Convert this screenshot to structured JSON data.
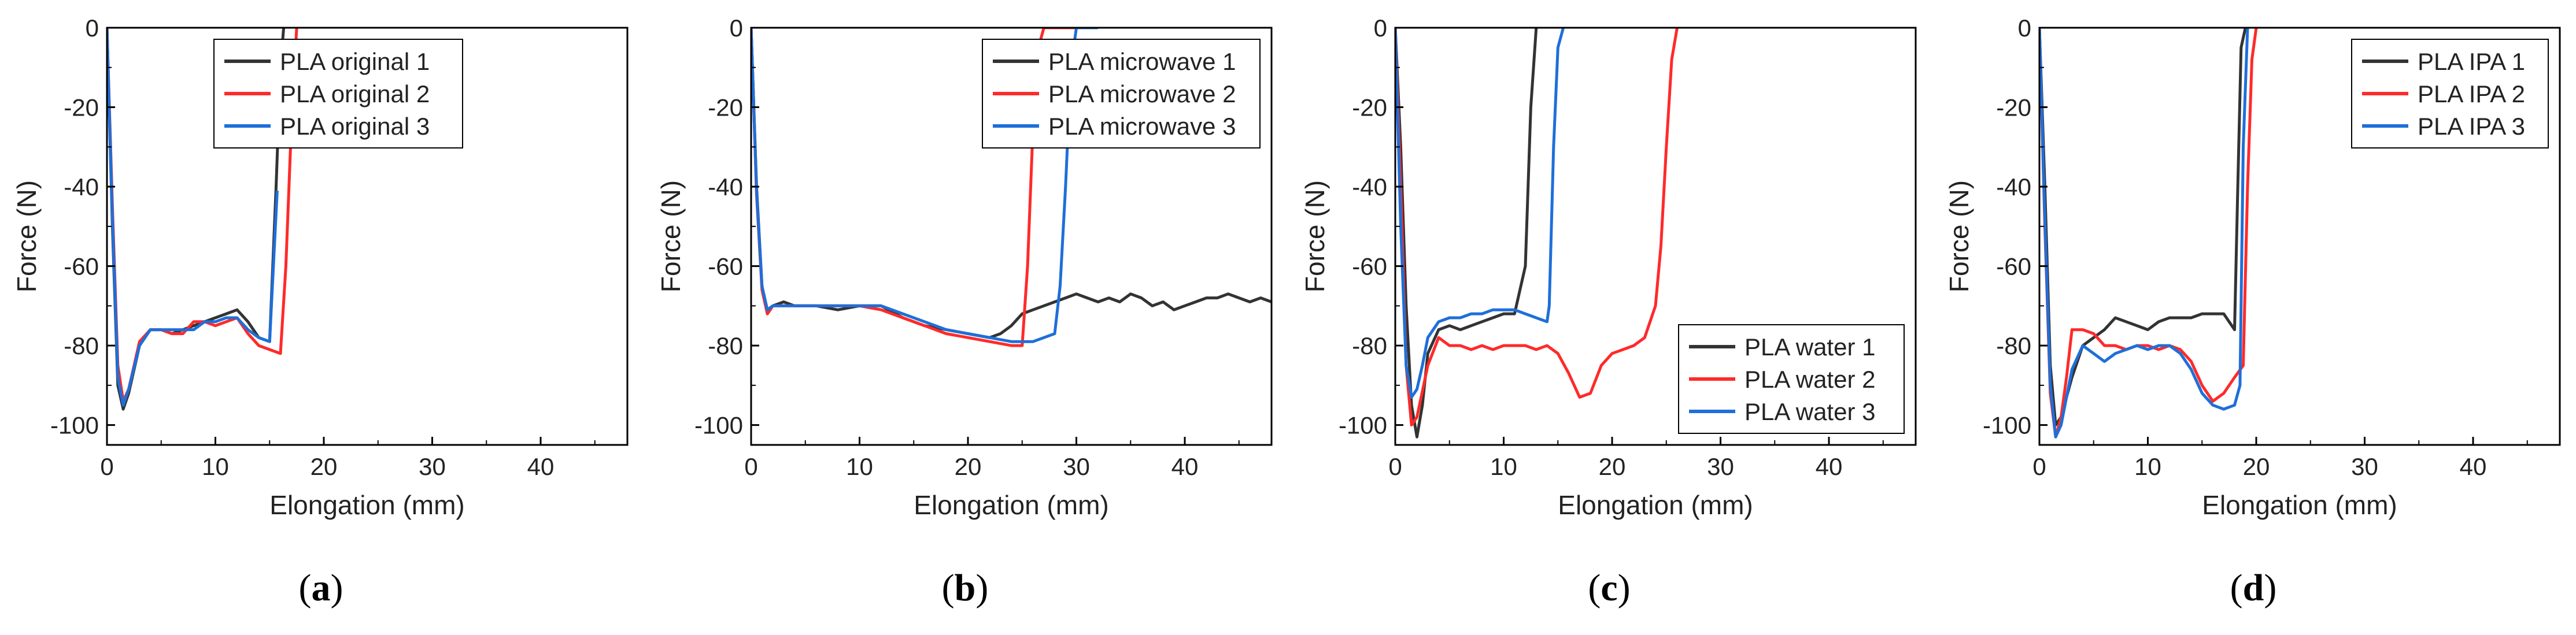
{
  "colors": {
    "series1": "#333333",
    "series2": "#ff2a2a",
    "series3": "#1e6fd9",
    "axis": "#000000"
  },
  "chart_data": [
    {
      "type": "line",
      "caption": "a",
      "xlabel": "Elongation (mm)",
      "ylabel": "Force (N)",
      "xlim": [
        0,
        48
      ],
      "ylim": [
        -105,
        0
      ],
      "xticks": [
        0,
        10,
        20,
        30,
        40
      ],
      "yticks": [
        0,
        -20,
        -40,
        -60,
        -80,
        -100
      ],
      "legend_position": "top-right",
      "series": [
        {
          "name": "PLA original 1",
          "color_key": "series1",
          "x": [
            0,
            0.5,
            1,
            1.5,
            2,
            3,
            4,
            5,
            6,
            7,
            8,
            9,
            10,
            11,
            12,
            13,
            14,
            15,
            15.6,
            16,
            16.3
          ],
          "y": [
            0,
            -50,
            -90,
            -96,
            -92,
            -80,
            -76,
            -76,
            -77,
            -76,
            -75,
            -74,
            -73,
            -72,
            -71,
            -74,
            -78,
            -79,
            -40,
            -10,
            0
          ]
        },
        {
          "name": "PLA original 2",
          "color_key": "series2",
          "x": [
            0,
            0.5,
            1,
            1.5,
            2,
            3,
            4,
            5,
            6,
            7,
            8,
            9,
            10,
            11,
            12,
            13,
            14,
            15,
            16,
            16.5,
            17,
            17.5
          ],
          "y": [
            0,
            -45,
            -85,
            -94,
            -91,
            -79,
            -76,
            -76,
            -77,
            -77,
            -74,
            -74,
            -75,
            -74,
            -73,
            -77,
            -80,
            -81,
            -82,
            -60,
            -25,
            0
          ]
        },
        {
          "name": "PLA original 3",
          "color_key": "series3",
          "x": [
            0,
            0.5,
            1,
            1.5,
            2,
            3,
            4,
            5,
            6,
            7,
            8,
            9,
            10,
            11,
            12,
            13,
            14,
            15,
            15.7
          ],
          "y": [
            0,
            -48,
            -88,
            -95,
            -91,
            -80,
            -76,
            -76,
            -76,
            -76,
            -76,
            -74,
            -74,
            -73,
            -73,
            -76,
            -78,
            -79,
            -41
          ]
        }
      ]
    },
    {
      "type": "line",
      "caption": "b",
      "xlabel": "Elongation (mm)",
      "ylabel": "Force (N)",
      "xlim": [
        0,
        48
      ],
      "ylim": [
        -105,
        0
      ],
      "xticks": [
        0,
        10,
        20,
        30,
        40
      ],
      "yticks": [
        0,
        -20,
        -40,
        -60,
        -80,
        -100
      ],
      "legend_position": "top-right",
      "series": [
        {
          "name": "PLA microwave 1",
          "color_key": "series1",
          "x": [
            0,
            0.5,
            1,
            1.5,
            2,
            3,
            4,
            6,
            8,
            10,
            12,
            14,
            16,
            18,
            20,
            22,
            23,
            24,
            25,
            26,
            27,
            28,
            29,
            30,
            31,
            32,
            33,
            34,
            35,
            36,
            37,
            38,
            39,
            40,
            41,
            42,
            43,
            44,
            45,
            46,
            47,
            48
          ],
          "y": [
            0,
            -40,
            -65,
            -72,
            -70,
            -69,
            -70,
            -70,
            -71,
            -70,
            -70,
            -73,
            -75,
            -76,
            -77,
            -78,
            -77,
            -75,
            -72,
            -71,
            -70,
            -69,
            -68,
            -67,
            -68,
            -69,
            -68,
            -69,
            -67,
            -68,
            -70,
            -69,
            -71,
            -70,
            -69,
            -68,
            -68,
            -67,
            -68,
            -69,
            -68,
            -69
          ]
        },
        {
          "name": "PLA microwave 2",
          "color_key": "series2",
          "x": [
            0,
            0.5,
            1,
            1.5,
            2,
            3,
            4,
            6,
            8,
            10,
            12,
            14,
            16,
            18,
            20,
            22,
            24,
            25,
            25.5,
            26,
            26.5,
            27,
            30
          ],
          "y": [
            0,
            -42,
            -66,
            -72,
            -70,
            -70,
            -70,
            -70,
            -70,
            -70,
            -71,
            -73,
            -75,
            -77,
            -78,
            -79,
            -80,
            -80,
            -60,
            -25,
            -5,
            0,
            0
          ]
        },
        {
          "name": "PLA microwave 3",
          "color_key": "series3",
          "x": [
            0,
            0.5,
            1,
            1.5,
            2,
            3,
            4,
            6,
            8,
            10,
            12,
            14,
            16,
            18,
            20,
            22,
            24,
            26,
            28,
            28.5,
            29,
            29.5,
            30,
            31,
            32
          ],
          "y": [
            0,
            -41,
            -65,
            -71,
            -70,
            -70,
            -70,
            -70,
            -70,
            -70,
            -70,
            -72,
            -74,
            -76,
            -77,
            -78,
            -79,
            -79,
            -77,
            -65,
            -40,
            -10,
            0,
            0,
            0
          ]
        }
      ]
    },
    {
      "type": "line",
      "caption": "c",
      "xlabel": "Elongation (mm)",
      "ylabel": "Force (N)",
      "xlim": [
        0,
        48
      ],
      "ylim": [
        -105,
        0
      ],
      "xticks": [
        0,
        10,
        20,
        30,
        40
      ],
      "yticks": [
        0,
        -20,
        -40,
        -60,
        -80,
        -100
      ],
      "legend_position": "bottom-right",
      "series": [
        {
          "name": "PLA water 1",
          "color_key": "series1",
          "x": [
            0,
            0.5,
            1,
            1.5,
            2,
            2.5,
            3,
            4,
            5,
            6,
            7,
            8,
            9,
            10,
            11,
            12,
            12.5,
            13
          ],
          "y": [
            0,
            -30,
            -70,
            -95,
            -103,
            -95,
            -82,
            -76,
            -75,
            -76,
            -75,
            -74,
            -73,
            -72,
            -72,
            -60,
            -20,
            0
          ]
        },
        {
          "name": "PLA water 2",
          "color_key": "series2",
          "x": [
            0,
            0.5,
            1,
            1.5,
            2,
            3,
            4,
            5,
            6,
            7,
            8,
            9,
            10,
            11,
            12,
            13,
            14,
            15,
            16,
            17,
            18,
            19,
            20,
            21,
            22,
            23,
            24,
            24.5,
            25,
            25.5,
            26
          ],
          "y": [
            0,
            -40,
            -85,
            -100,
            -98,
            -85,
            -78,
            -80,
            -80,
            -81,
            -80,
            -81,
            -80,
            -80,
            -80,
            -81,
            -80,
            -82,
            -87,
            -93,
            -92,
            -85,
            -82,
            -81,
            -80,
            -78,
            -70,
            -55,
            -30,
            -8,
            0
          ]
        },
        {
          "name": "PLA water 3",
          "color_key": "series3",
          "x": [
            0,
            0.5,
            1,
            1.5,
            2,
            2.5,
            3,
            4,
            5,
            6,
            7,
            8,
            9,
            10,
            11,
            12,
            13,
            14,
            14.2,
            14.6,
            15,
            15.5
          ],
          "y": [
            0,
            -50,
            -85,
            -93,
            -91,
            -85,
            -78,
            -74,
            -73,
            -73,
            -72,
            -72,
            -71,
            -71,
            -71,
            -72,
            -73,
            -74,
            -70,
            -30,
            -5,
            0
          ]
        }
      ]
    },
    {
      "type": "line",
      "caption": "d",
      "xlabel": "Elongation (mm)",
      "ylabel": "Force (N)",
      "xlim": [
        0,
        48
      ],
      "ylim": [
        -105,
        0
      ],
      "xticks": [
        0,
        10,
        20,
        30,
        40
      ],
      "yticks": [
        0,
        -20,
        -40,
        -60,
        -80,
        -100
      ],
      "legend_position": "top-right",
      "series": [
        {
          "name": "PLA IPA 1",
          "color_key": "series1",
          "x": [
            0,
            0.5,
            1,
            1.5,
            2,
            3,
            4,
            5,
            6,
            7,
            8,
            9,
            10,
            11,
            12,
            13,
            14,
            15,
            16,
            17,
            17.5,
            18,
            18.3,
            18.6,
            19
          ],
          "y": [
            0,
            -40,
            -85,
            -100,
            -98,
            -88,
            -80,
            -78,
            -76,
            -73,
            -74,
            -75,
            -76,
            -74,
            -73,
            -73,
            -73,
            -72,
            -72,
            -72,
            -74,
            -76,
            -40,
            -5,
            0
          ]
        },
        {
          "name": "PLA IPA 2",
          "color_key": "series2",
          "x": [
            0,
            0.5,
            1,
            1.5,
            2,
            2.5,
            3,
            4,
            5,
            6,
            7,
            8,
            9,
            10,
            11,
            12,
            13,
            14,
            15,
            16,
            17,
            18,
            18.8,
            19.2,
            19.6,
            20
          ],
          "y": [
            0,
            -50,
            -92,
            -103,
            -98,
            -88,
            -76,
            -76,
            -77,
            -80,
            -80,
            -81,
            -80,
            -80,
            -81,
            -80,
            -81,
            -84,
            -90,
            -94,
            -92,
            -88,
            -85,
            -40,
            -8,
            0
          ]
        },
        {
          "name": "PLA IPA 3",
          "color_key": "series3",
          "x": [
            0,
            0.5,
            1,
            1.5,
            2,
            3,
            4,
            5,
            6,
            7,
            8,
            9,
            10,
            11,
            12,
            13,
            14,
            15,
            16,
            17,
            18,
            18.5,
            18.8,
            19.2
          ],
          "y": [
            0,
            -48,
            -90,
            -103,
            -100,
            -86,
            -80,
            -82,
            -84,
            -82,
            -81,
            -80,
            -81,
            -80,
            -80,
            -82,
            -86,
            -92,
            -95,
            -96,
            -95,
            -90,
            -30,
            0
          ]
        }
      ]
    }
  ]
}
